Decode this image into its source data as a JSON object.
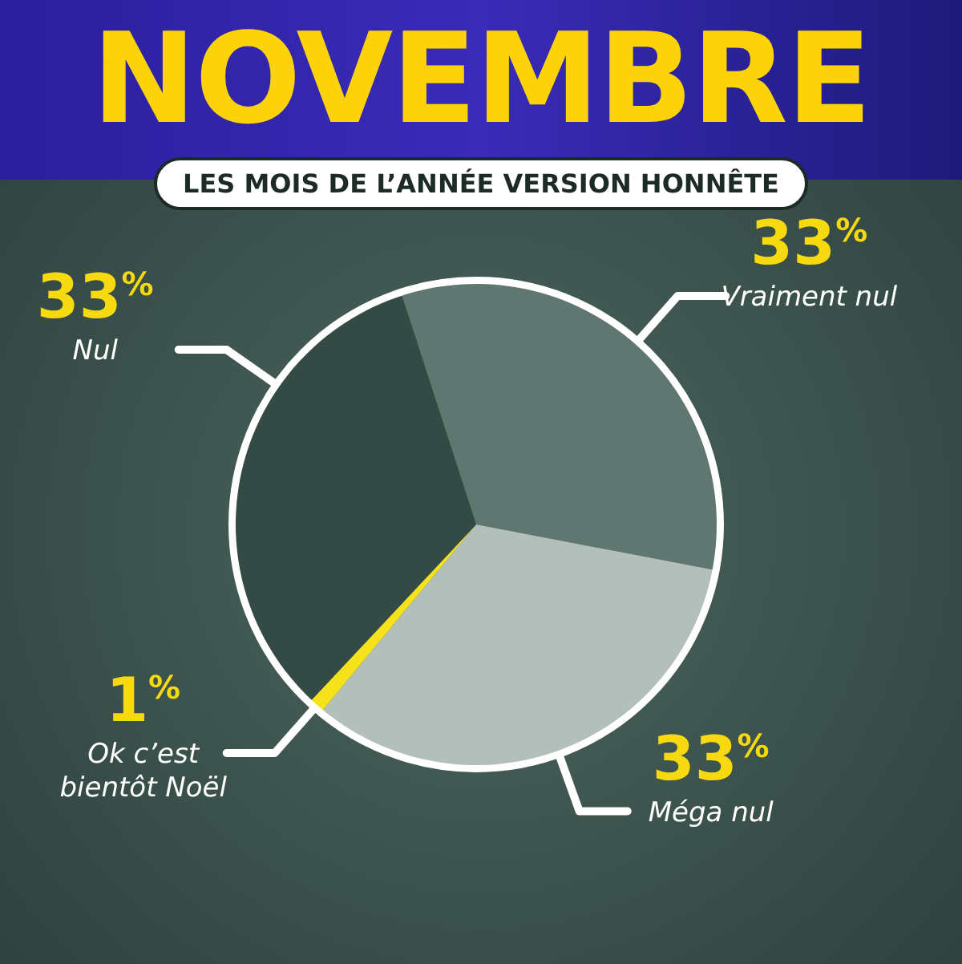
{
  "chart_data": {
    "type": "pie",
    "title": "NOVEMBRE",
    "subtitle": "LES MOIS DE L’ANNÉE VERSION HONNÊTE",
    "categories": [
      "Vraiment nul",
      "Méga nul",
      "Ok c’est bientôt Noël",
      "Nul"
    ],
    "values": [
      33,
      33,
      1,
      33
    ],
    "colors": [
      "#5f7770",
      "#b3bfbb",
      "#f5e21a",
      "#344a44"
    ],
    "value_labels": [
      "33$^{%}$",
      "33$^{%}$",
      "1$^{%}$",
      "33$^{%}$"
    ]
  }
}
